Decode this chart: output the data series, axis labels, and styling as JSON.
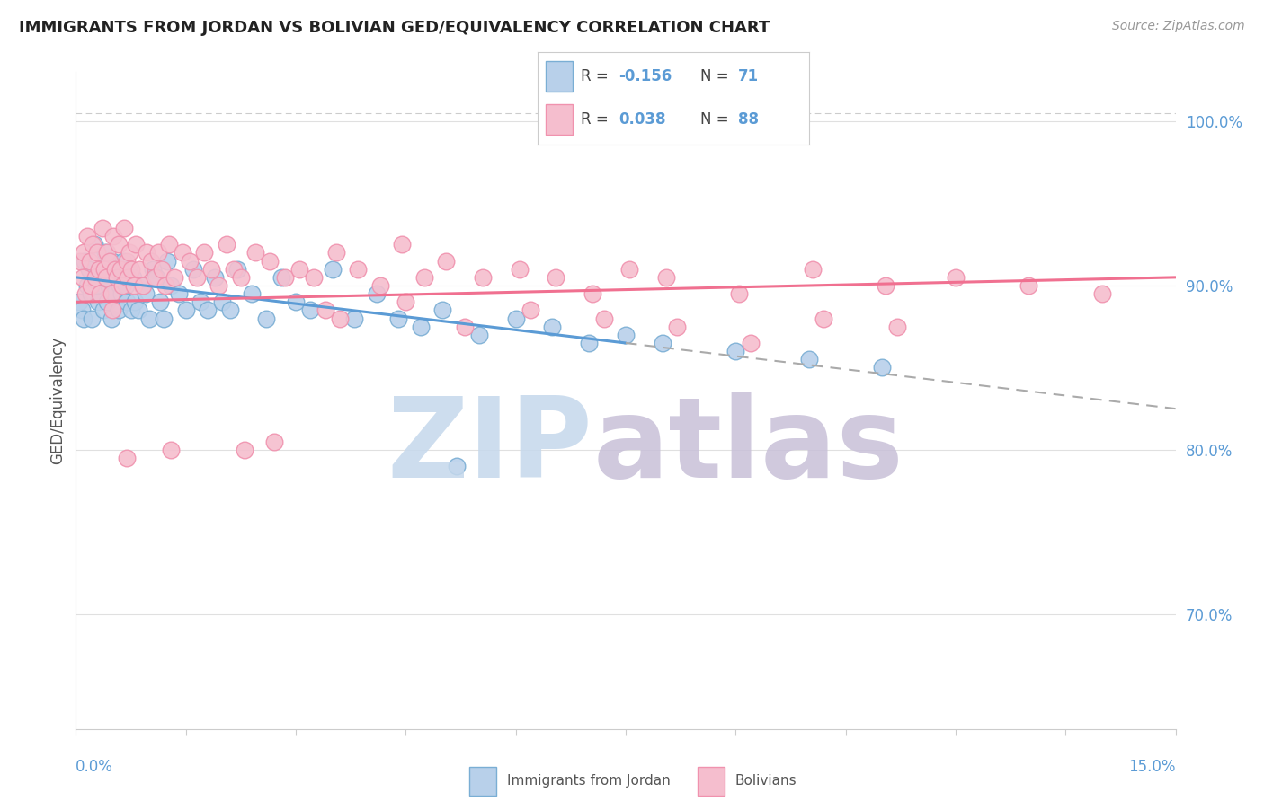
{
  "title": "IMMIGRANTS FROM JORDAN VS BOLIVIAN GED/EQUIVALENCY CORRELATION CHART",
  "source_text": "Source: ZipAtlas.com",
  "ylabel": "GED/Equivalency",
  "xmin": 0.0,
  "xmax": 15.0,
  "ymin": 63.0,
  "ymax": 103.0,
  "yticks": [
    70.0,
    80.0,
    90.0,
    100.0
  ],
  "ytick_labels": [
    "70.0%",
    "80.0%",
    "90.0%",
    "100.0%"
  ],
  "blue_color": "#b8d0ea",
  "pink_color": "#f5bece",
  "blue_edge": "#7aaed4",
  "pink_edge": "#f092ae",
  "trend_blue": "#5b9bd5",
  "trend_pink": "#f07090",
  "background_color": "#ffffff",
  "grid_color": "#e0e0e0",
  "axis_color": "#cccccc",
  "title_color": "#222222",
  "tick_color": "#5b9bd5",
  "blue_points_x": [
    0.05,
    0.08,
    0.1,
    0.12,
    0.15,
    0.18,
    0.2,
    0.22,
    0.25,
    0.28,
    0.3,
    0.32,
    0.35,
    0.38,
    0.4,
    0.42,
    0.45,
    0.48,
    0.5,
    0.52,
    0.55,
    0.58,
    0.6,
    0.62,
    0.65,
    0.68,
    0.7,
    0.72,
    0.75,
    0.78,
    0.8,
    0.85,
    0.9,
    0.95,
    1.0,
    1.05,
    1.1,
    1.15,
    1.2,
    1.25,
    1.3,
    1.4,
    1.5,
    1.6,
    1.7,
    1.8,
    1.9,
    2.0,
    2.1,
    2.2,
    2.4,
    2.6,
    2.8,
    3.0,
    3.2,
    3.5,
    3.8,
    4.1,
    4.4,
    4.7,
    5.0,
    5.5,
    6.0,
    6.5,
    7.0,
    7.5,
    8.0,
    9.0,
    10.0,
    11.0,
    5.2
  ],
  "blue_points_y": [
    89.0,
    88.5,
    88.0,
    91.5,
    90.0,
    91.0,
    89.5,
    88.0,
    92.5,
    90.0,
    89.0,
    91.0,
    90.5,
    88.5,
    92.0,
    89.0,
    90.0,
    88.0,
    91.5,
    89.5,
    91.0,
    88.5,
    90.0,
    89.5,
    91.5,
    90.0,
    89.0,
    91.0,
    88.5,
    90.5,
    89.0,
    88.5,
    90.0,
    89.5,
    88.0,
    91.0,
    90.5,
    89.0,
    88.0,
    91.5,
    90.0,
    89.5,
    88.5,
    91.0,
    89.0,
    88.5,
    90.5,
    89.0,
    88.5,
    91.0,
    89.5,
    88.0,
    90.5,
    89.0,
    88.5,
    91.0,
    88.0,
    89.5,
    88.0,
    87.5,
    88.5,
    87.0,
    88.0,
    87.5,
    86.5,
    87.0,
    86.5,
    86.0,
    85.5,
    85.0,
    79.0
  ],
  "pink_points_x": [
    0.06,
    0.09,
    0.11,
    0.13,
    0.16,
    0.19,
    0.21,
    0.23,
    0.26,
    0.29,
    0.31,
    0.33,
    0.36,
    0.39,
    0.41,
    0.43,
    0.46,
    0.49,
    0.51,
    0.53,
    0.56,
    0.59,
    0.61,
    0.63,
    0.66,
    0.69,
    0.71,
    0.73,
    0.76,
    0.79,
    0.82,
    0.87,
    0.92,
    0.97,
    1.02,
    1.07,
    1.12,
    1.17,
    1.22,
    1.27,
    1.35,
    1.45,
    1.55,
    1.65,
    1.75,
    1.85,
    1.95,
    2.05,
    2.15,
    2.25,
    2.45,
    2.65,
    2.85,
    3.05,
    3.25,
    3.55,
    3.85,
    4.15,
    4.45,
    4.75,
    5.05,
    5.55,
    6.05,
    6.55,
    7.05,
    7.55,
    8.05,
    9.05,
    10.05,
    11.05,
    3.4,
    3.6,
    4.5,
    5.3,
    6.2,
    7.2,
    8.2,
    9.2,
    10.2,
    11.2,
    12.0,
    13.0,
    14.0,
    2.7,
    2.3,
    1.3,
    0.7,
    0.5
  ],
  "pink_points_y": [
    91.5,
    90.5,
    92.0,
    89.5,
    93.0,
    91.5,
    90.0,
    92.5,
    90.5,
    92.0,
    91.0,
    89.5,
    93.5,
    91.0,
    90.5,
    92.0,
    91.5,
    89.5,
    93.0,
    91.0,
    90.5,
    92.5,
    91.0,
    90.0,
    93.5,
    91.5,
    90.5,
    92.0,
    91.0,
    90.0,
    92.5,
    91.0,
    90.0,
    92.0,
    91.5,
    90.5,
    92.0,
    91.0,
    90.0,
    92.5,
    90.5,
    92.0,
    91.5,
    90.5,
    92.0,
    91.0,
    90.0,
    92.5,
    91.0,
    90.5,
    92.0,
    91.5,
    90.5,
    91.0,
    90.5,
    92.0,
    91.0,
    90.0,
    92.5,
    90.5,
    91.5,
    90.5,
    91.0,
    90.5,
    89.5,
    91.0,
    90.5,
    89.5,
    91.0,
    90.0,
    88.5,
    88.0,
    89.0,
    87.5,
    88.5,
    88.0,
    87.5,
    86.5,
    88.0,
    87.5,
    90.5,
    90.0,
    89.5,
    80.5,
    80.0,
    80.0,
    79.5,
    88.5
  ],
  "blue_trend_x0": 0.0,
  "blue_trend_y0": 90.5,
  "blue_trend_x1": 7.5,
  "blue_trend_y1": 86.5,
  "blue_dash_x0": 7.5,
  "blue_dash_y0": 86.5,
  "blue_dash_x1": 15.0,
  "blue_dash_y1": 82.5,
  "pink_trend_x0": 0.0,
  "pink_trend_y0": 89.0,
  "pink_trend_x1": 15.0,
  "pink_trend_y1": 90.5,
  "dashed_line_y": 100.5,
  "watermark_zip_color": "#c5d8ec",
  "watermark_atlas_color": "#c8c0d8"
}
